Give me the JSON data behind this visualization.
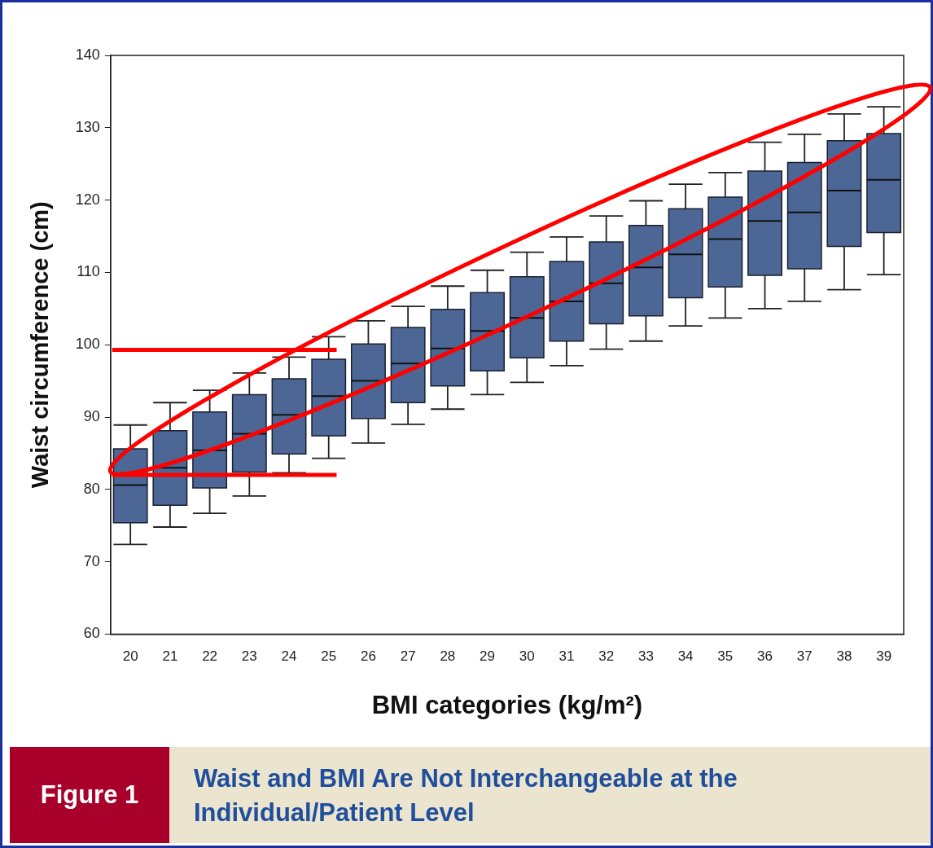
{
  "chart_data": {
    "type": "box",
    "title": "Waist and BMI Are Not Interchangeable at the Individual/Patient Level",
    "xlabel": "BMI categories (kg/m²)",
    "ylabel": "Waist circumference (cm)",
    "annotations": [
      "Figure 1"
    ],
    "categories": [
      "20",
      "21",
      "22",
      "23",
      "24",
      "25",
      "26",
      "27",
      "28",
      "29",
      "30",
      "31",
      "32",
      "33",
      "34",
      "35",
      "36",
      "37",
      "38",
      "39"
    ],
    "series": [
      {
        "color": "#4c6795",
        "boxes": [
          {
            "low": 72.4,
            "q1": 75.4,
            "median": 80.6,
            "q3": 85.6,
            "high": 88.9
          },
          {
            "low": 74.8,
            "q1": 77.8,
            "median": 83.0,
            "q3": 88.1,
            "high": 92.0
          },
          {
            "low": 76.7,
            "q1": 80.2,
            "median": 85.4,
            "q3": 90.7,
            "high": 93.7
          },
          {
            "low": 79.1,
            "q1": 82.4,
            "median": 87.7,
            "q3": 93.1,
            "high": 96.1
          },
          {
            "low": 82.3,
            "q1": 84.9,
            "median": 90.3,
            "q3": 95.3,
            "high": 98.3
          },
          {
            "low": 84.3,
            "q1": 87.4,
            "median": 92.9,
            "q3": 98.0,
            "high": 101.1
          },
          {
            "low": 86.4,
            "q1": 89.8,
            "median": 95.0,
            "q3": 100.1,
            "high": 103.3
          },
          {
            "low": 89.0,
            "q1": 92.0,
            "median": 97.4,
            "q3": 102.4,
            "high": 105.3
          },
          {
            "low": 91.1,
            "q1": 94.3,
            "median": 99.5,
            "q3": 104.9,
            "high": 108.1
          },
          {
            "low": 93.1,
            "q1": 96.4,
            "median": 101.9,
            "q3": 107.2,
            "high": 110.3
          },
          {
            "low": 94.8,
            "q1": 98.2,
            "median": 103.7,
            "q3": 109.4,
            "high": 112.8
          },
          {
            "low": 97.1,
            "q1": 100.5,
            "median": 106.0,
            "q3": 111.5,
            "high": 114.9
          },
          {
            "low": 99.4,
            "q1": 102.9,
            "median": 108.5,
            "q3": 114.2,
            "high": 117.8
          },
          {
            "low": 100.5,
            "q1": 104.0,
            "median": 110.7,
            "q3": 116.5,
            "high": 119.9
          },
          {
            "low": 102.6,
            "q1": 106.5,
            "median": 112.5,
            "q3": 118.8,
            "high": 122.2
          },
          {
            "low": 103.7,
            "q1": 108.0,
            "median": 114.6,
            "q3": 120.4,
            "high": 123.8
          },
          {
            "low": 105.0,
            "q1": 109.6,
            "median": 117.1,
            "q3": 124.0,
            "high": 128.0
          },
          {
            "low": 106.0,
            "q1": 110.5,
            "median": 118.3,
            "q3": 125.2,
            "high": 129.1
          },
          {
            "low": 107.6,
            "q1": 113.6,
            "median": 121.3,
            "q3": 128.2,
            "high": 131.9
          },
          {
            "low": 109.7,
            "q1": 115.5,
            "median": 122.8,
            "q3": 129.2,
            "high": 132.9
          }
        ]
      }
    ],
    "ylim": [
      60,
      140
    ],
    "yticks": [
      60,
      70,
      80,
      90,
      100,
      110,
      120,
      130,
      140
    ],
    "grid": false,
    "legend": false,
    "ref_lines": [
      {
        "axis": "y",
        "value": 99.3,
        "color": "#ff0000"
      },
      {
        "axis": "y",
        "value": 82.0,
        "color": "#ff0000"
      }
    ]
  }
}
